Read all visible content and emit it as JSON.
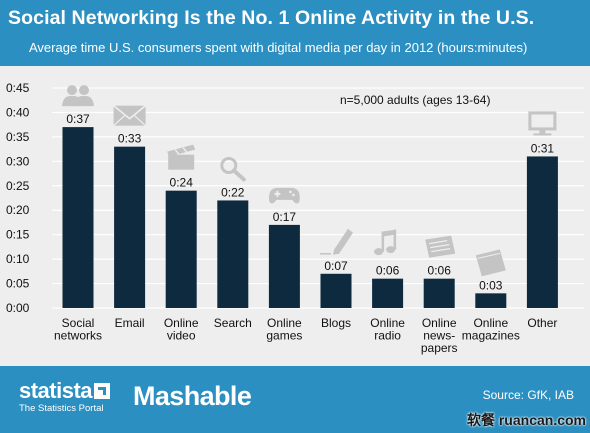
{
  "header": {
    "title": "Social Networking Is the No. 1 Online Activity in the U.S.",
    "subtitle": "Average time U.S. consumers spent with digital media per day in 2012 (hours:minutes)"
  },
  "footer": {
    "statista_logo_text": "statista",
    "statista_tagline": "The Statistics Portal",
    "mashable_logo_text": "Mashable",
    "source": "Source: GfK, IAB"
  },
  "watermark": "软餐 ruancan.com",
  "colors": {
    "header_bg": "#2b8fc1",
    "plot_bg": "#eeeeee",
    "bar": "#0e2a3f",
    "icon": "#c4c4c4"
  },
  "chart_data": {
    "type": "bar",
    "title": "Social Networking Is the No. 1 Online Activity in the U.S.",
    "subtitle": "Average time U.S. consumers spent with digital media per day in 2012 (hours:minutes)",
    "note": "n=5,000 adults (ages 13-64)",
    "categories": [
      [
        "Social",
        "networks"
      ],
      [
        "Email"
      ],
      [
        "Online",
        "video"
      ],
      [
        "Search"
      ],
      [
        "Online",
        "games"
      ],
      [
        "Blogs"
      ],
      [
        "Online",
        "radio"
      ],
      [
        "Online",
        "news-",
        "papers"
      ],
      [
        "Online",
        "magazines"
      ],
      [
        "Other"
      ]
    ],
    "values": [
      0.37,
      0.33,
      0.24,
      0.22,
      0.17,
      0.07,
      0.06,
      0.06,
      0.03,
      0.31
    ],
    "value_labels": [
      "0:37",
      "0:33",
      "0:24",
      "0:22",
      "0:17",
      "0:07",
      "0:06",
      "0:06",
      "0:03",
      "0:31"
    ],
    "icons": [
      "people-icon",
      "envelope-icon",
      "clapperboard-icon",
      "magnifier-icon",
      "gamepad-icon",
      "pen-icon",
      "music-note-icon",
      "newspaper-icon",
      "magazine-icon",
      "monitor-icon"
    ],
    "yticks": [
      "0:00",
      "0:05",
      "0:10",
      "0:15",
      "0:20",
      "0:25",
      "0:30",
      "0:35",
      "0:40",
      "0:45"
    ],
    "ylim": [
      0,
      0.45
    ],
    "grid": true,
    "xlabel": "",
    "ylabel": ""
  }
}
